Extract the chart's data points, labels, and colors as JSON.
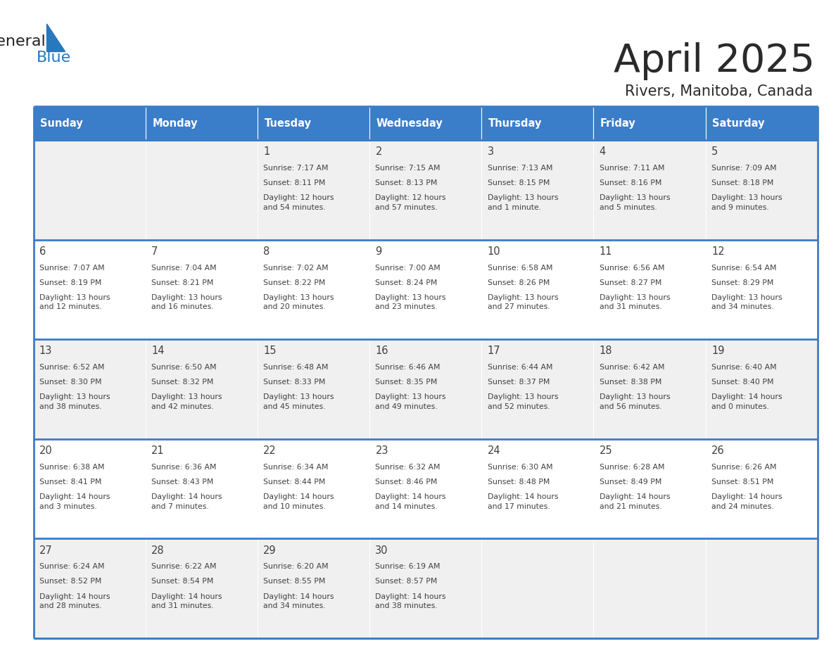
{
  "title": "April 2025",
  "subtitle": "Rivers, Manitoba, Canada",
  "days_of_week": [
    "Sunday",
    "Monday",
    "Tuesday",
    "Wednesday",
    "Thursday",
    "Friday",
    "Saturday"
  ],
  "header_bg": "#3A7DC9",
  "header_text": "#FFFFFF",
  "cell_bg_odd": "#F0F0F0",
  "cell_bg_even": "#FFFFFF",
  "border_color": "#3A7DC9",
  "text_color": "#404040",
  "logo_general_color": "#222222",
  "logo_blue_color": "#2878BE",
  "weeks": [
    [
      {
        "day": "",
        "sunrise": "",
        "sunset": "",
        "daylight": ""
      },
      {
        "day": "",
        "sunrise": "",
        "sunset": "",
        "daylight": ""
      },
      {
        "day": "1",
        "sunrise": "Sunrise: 7:17 AM",
        "sunset": "Sunset: 8:11 PM",
        "daylight": "Daylight: 12 hours\nand 54 minutes."
      },
      {
        "day": "2",
        "sunrise": "Sunrise: 7:15 AM",
        "sunset": "Sunset: 8:13 PM",
        "daylight": "Daylight: 12 hours\nand 57 minutes."
      },
      {
        "day": "3",
        "sunrise": "Sunrise: 7:13 AM",
        "sunset": "Sunset: 8:15 PM",
        "daylight": "Daylight: 13 hours\nand 1 minute."
      },
      {
        "day": "4",
        "sunrise": "Sunrise: 7:11 AM",
        "sunset": "Sunset: 8:16 PM",
        "daylight": "Daylight: 13 hours\nand 5 minutes."
      },
      {
        "day": "5",
        "sunrise": "Sunrise: 7:09 AM",
        "sunset": "Sunset: 8:18 PM",
        "daylight": "Daylight: 13 hours\nand 9 minutes."
      }
    ],
    [
      {
        "day": "6",
        "sunrise": "Sunrise: 7:07 AM",
        "sunset": "Sunset: 8:19 PM",
        "daylight": "Daylight: 13 hours\nand 12 minutes."
      },
      {
        "day": "7",
        "sunrise": "Sunrise: 7:04 AM",
        "sunset": "Sunset: 8:21 PM",
        "daylight": "Daylight: 13 hours\nand 16 minutes."
      },
      {
        "day": "8",
        "sunrise": "Sunrise: 7:02 AM",
        "sunset": "Sunset: 8:22 PM",
        "daylight": "Daylight: 13 hours\nand 20 minutes."
      },
      {
        "day": "9",
        "sunrise": "Sunrise: 7:00 AM",
        "sunset": "Sunset: 8:24 PM",
        "daylight": "Daylight: 13 hours\nand 23 minutes."
      },
      {
        "day": "10",
        "sunrise": "Sunrise: 6:58 AM",
        "sunset": "Sunset: 8:26 PM",
        "daylight": "Daylight: 13 hours\nand 27 minutes."
      },
      {
        "day": "11",
        "sunrise": "Sunrise: 6:56 AM",
        "sunset": "Sunset: 8:27 PM",
        "daylight": "Daylight: 13 hours\nand 31 minutes."
      },
      {
        "day": "12",
        "sunrise": "Sunrise: 6:54 AM",
        "sunset": "Sunset: 8:29 PM",
        "daylight": "Daylight: 13 hours\nand 34 minutes."
      }
    ],
    [
      {
        "day": "13",
        "sunrise": "Sunrise: 6:52 AM",
        "sunset": "Sunset: 8:30 PM",
        "daylight": "Daylight: 13 hours\nand 38 minutes."
      },
      {
        "day": "14",
        "sunrise": "Sunrise: 6:50 AM",
        "sunset": "Sunset: 8:32 PM",
        "daylight": "Daylight: 13 hours\nand 42 minutes."
      },
      {
        "day": "15",
        "sunrise": "Sunrise: 6:48 AM",
        "sunset": "Sunset: 8:33 PM",
        "daylight": "Daylight: 13 hours\nand 45 minutes."
      },
      {
        "day": "16",
        "sunrise": "Sunrise: 6:46 AM",
        "sunset": "Sunset: 8:35 PM",
        "daylight": "Daylight: 13 hours\nand 49 minutes."
      },
      {
        "day": "17",
        "sunrise": "Sunrise: 6:44 AM",
        "sunset": "Sunset: 8:37 PM",
        "daylight": "Daylight: 13 hours\nand 52 minutes."
      },
      {
        "day": "18",
        "sunrise": "Sunrise: 6:42 AM",
        "sunset": "Sunset: 8:38 PM",
        "daylight": "Daylight: 13 hours\nand 56 minutes."
      },
      {
        "day": "19",
        "sunrise": "Sunrise: 6:40 AM",
        "sunset": "Sunset: 8:40 PM",
        "daylight": "Daylight: 14 hours\nand 0 minutes."
      }
    ],
    [
      {
        "day": "20",
        "sunrise": "Sunrise: 6:38 AM",
        "sunset": "Sunset: 8:41 PM",
        "daylight": "Daylight: 14 hours\nand 3 minutes."
      },
      {
        "day": "21",
        "sunrise": "Sunrise: 6:36 AM",
        "sunset": "Sunset: 8:43 PM",
        "daylight": "Daylight: 14 hours\nand 7 minutes."
      },
      {
        "day": "22",
        "sunrise": "Sunrise: 6:34 AM",
        "sunset": "Sunset: 8:44 PM",
        "daylight": "Daylight: 14 hours\nand 10 minutes."
      },
      {
        "day": "23",
        "sunrise": "Sunrise: 6:32 AM",
        "sunset": "Sunset: 8:46 PM",
        "daylight": "Daylight: 14 hours\nand 14 minutes."
      },
      {
        "day": "24",
        "sunrise": "Sunrise: 6:30 AM",
        "sunset": "Sunset: 8:48 PM",
        "daylight": "Daylight: 14 hours\nand 17 minutes."
      },
      {
        "day": "25",
        "sunrise": "Sunrise: 6:28 AM",
        "sunset": "Sunset: 8:49 PM",
        "daylight": "Daylight: 14 hours\nand 21 minutes."
      },
      {
        "day": "26",
        "sunrise": "Sunrise: 6:26 AM",
        "sunset": "Sunset: 8:51 PM",
        "daylight": "Daylight: 14 hours\nand 24 minutes."
      }
    ],
    [
      {
        "day": "27",
        "sunrise": "Sunrise: 6:24 AM",
        "sunset": "Sunset: 8:52 PM",
        "daylight": "Daylight: 14 hours\nand 28 minutes."
      },
      {
        "day": "28",
        "sunrise": "Sunrise: 6:22 AM",
        "sunset": "Sunset: 8:54 PM",
        "daylight": "Daylight: 14 hours\nand 31 minutes."
      },
      {
        "day": "29",
        "sunrise": "Sunrise: 6:20 AM",
        "sunset": "Sunset: 8:55 PM",
        "daylight": "Daylight: 14 hours\nand 34 minutes."
      },
      {
        "day": "30",
        "sunrise": "Sunrise: 6:19 AM",
        "sunset": "Sunset: 8:57 PM",
        "daylight": "Daylight: 14 hours\nand 38 minutes."
      },
      {
        "day": "",
        "sunrise": "",
        "sunset": "",
        "daylight": ""
      },
      {
        "day": "",
        "sunrise": "",
        "sunset": "",
        "daylight": ""
      },
      {
        "day": "",
        "sunrise": "",
        "sunset": "",
        "daylight": ""
      }
    ]
  ]
}
